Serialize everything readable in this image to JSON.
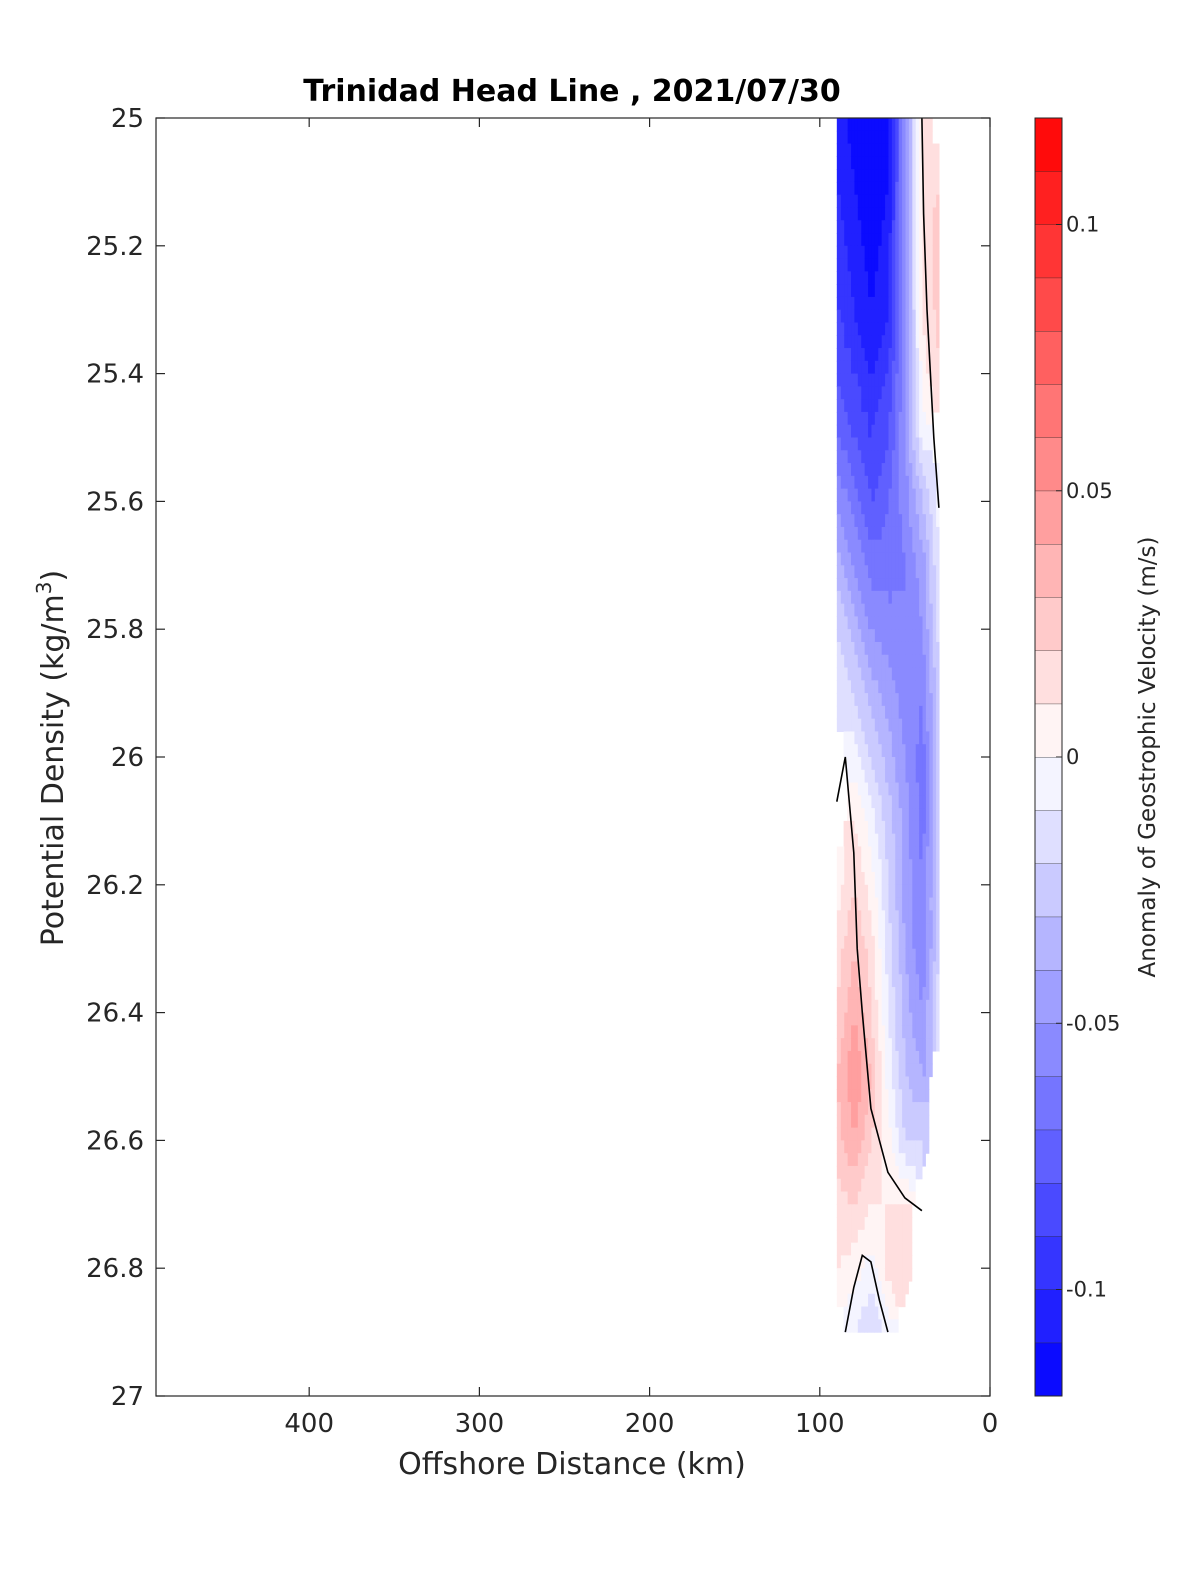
{
  "chart_data": {
    "type": "contourf",
    "title": "Trinidad Head Line , 2021/07/30",
    "xlabel": "Offshore Distance (km)",
    "ylabel_main": "Potential Density (kg/m",
    "ylabel_sup": "3",
    "ylabel_close": ")",
    "xlim": [
      490,
      0
    ],
    "x_reversed": true,
    "ylim": [
      25,
      27
    ],
    "y_reversed": true,
    "x_ticks": [
      400,
      300,
      200,
      100,
      0
    ],
    "y_ticks": [
      25,
      25.2,
      25.4,
      25.6,
      25.8,
      26,
      26.2,
      26.4,
      26.6,
      26.8,
      27
    ],
    "y_tick_labels": [
      "25",
      "25.2",
      "25.4",
      "25.6",
      "25.8",
      "26",
      "26.2",
      "26.4",
      "26.6",
      "26.8",
      "27"
    ],
    "colorbar": {
      "label": "Anomaly of Geostrophic Velocity (m/s)",
      "range": [
        -0.12,
        0.12
      ],
      "step": 0.01,
      "ticks": [
        0.1,
        0.05,
        0,
        -0.05,
        -0.1
      ],
      "tick_labels": [
        "0.1",
        "0.05",
        "0",
        "-0.05",
        "-0.1"
      ],
      "colormap": "blue-white-red"
    },
    "field": {
      "x": [
        30,
        40,
        50,
        60,
        70,
        80,
        90
      ],
      "y": [
        25.0,
        25.1,
        25.2,
        25.3,
        25.4,
        25.5,
        25.6,
        25.7,
        25.8,
        25.9,
        26.0,
        26.1,
        26.2,
        26.3,
        26.4,
        26.5,
        26.6,
        26.7,
        26.8,
        26.9
      ],
      "v": [
        [
          null,
          0.015,
          -0.05,
          -0.11,
          -0.12,
          -0.115,
          -0.105
        ],
        [
          0.02,
          0.015,
          -0.05,
          -0.11,
          -0.12,
          -0.11,
          -0.1
        ],
        [
          0.025,
          0.015,
          -0.05,
          -0.105,
          -0.115,
          -0.105,
          -0.095
        ],
        [
          0.025,
          0.01,
          -0.05,
          -0.1,
          -0.11,
          -0.1,
          -0.09
        ],
        [
          0.02,
          0.005,
          -0.05,
          -0.09,
          -0.1,
          -0.09,
          -0.08
        ],
        [
          null,
          -0.005,
          -0.05,
          -0.08,
          -0.09,
          -0.08,
          -0.07
        ],
        [
          -0.005,
          -0.03,
          -0.055,
          -0.07,
          -0.08,
          -0.065,
          -0.05
        ],
        [
          -0.01,
          -0.045,
          -0.06,
          -0.065,
          -0.065,
          -0.05,
          -0.035
        ],
        [
          -0.015,
          -0.05,
          -0.06,
          -0.055,
          -0.05,
          -0.035,
          -0.02
        ],
        [
          -0.02,
          -0.06,
          -0.055,
          -0.045,
          -0.035,
          -0.02,
          -0.01
        ],
        [
          -0.02,
          -0.065,
          -0.05,
          -0.035,
          -0.02,
          -0.005,
          null
        ],
        [
          -0.02,
          -0.065,
          -0.045,
          -0.025,
          -0.005,
          0.01,
          null
        ],
        [
          -0.02,
          -0.06,
          -0.045,
          -0.02,
          0.005,
          0.02,
          0.005
        ],
        [
          -0.02,
          -0.06,
          -0.04,
          -0.015,
          0.015,
          0.03,
          0.015
        ],
        [
          -0.01,
          -0.05,
          -0.035,
          -0.01,
          0.02,
          0.04,
          0.02
        ],
        [
          null,
          -0.04,
          -0.03,
          -0.005,
          0.03,
          0.05,
          0.03
        ],
        [
          null,
          -0.02,
          -0.02,
          0.005,
          0.02,
          0.04,
          0.025
        ],
        [
          null,
          null,
          0.01,
          0.01,
          0.01,
          0.02,
          0.015
        ],
        [
          null,
          null,
          0.02,
          0.015,
          -0.005,
          0.005,
          0.01
        ],
        [
          null,
          null,
          null,
          -0.005,
          -0.02,
          -0.01,
          null
        ]
      ]
    },
    "zero_contours": [
      {
        "x": [
          40,
          39,
          37,
          35,
          33,
          30
        ],
        "y": [
          25.0,
          25.15,
          25.3,
          25.4,
          25.5,
          25.61
        ]
      },
      {
        "x": [
          90,
          85,
          80,
          78,
          75,
          70,
          65,
          60,
          50,
          40
        ],
        "y": [
          26.07,
          26.0,
          26.15,
          26.3,
          26.4,
          26.55,
          26.6,
          26.65,
          26.69,
          26.71
        ]
      },
      {
        "x": [
          85,
          80,
          75,
          70,
          65,
          60
        ],
        "y": [
          26.9,
          26.83,
          26.78,
          26.79,
          26.85,
          26.9
        ]
      }
    ]
  }
}
